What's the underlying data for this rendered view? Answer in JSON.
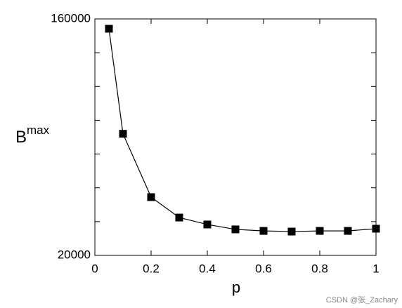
{
  "chart_data": {
    "type": "line",
    "xlabel": "p",
    "ylabel": {
      "base": "B",
      "sup": "max"
    },
    "x": [
      0.05,
      0.1,
      0.2,
      0.3,
      0.4,
      0.5,
      0.6,
      0.7,
      0.8,
      0.9,
      1.0
    ],
    "series": [
      {
        "color": "#000000",
        "values": [
          154200,
          92000,
          54500,
          42400,
          38300,
          35400,
          34500,
          34100,
          34500,
          34500,
          35800
        ]
      }
    ],
    "xlim": [
      0,
      1
    ],
    "xticks": [
      0,
      0.2,
      0.4,
      0.6,
      0.8,
      1
    ],
    "ylim": [
      20000,
      160000
    ],
    "yticks": [
      20000,
      160000
    ],
    "yminor_ticks": [
      40000,
      60000,
      80000,
      100000,
      120000,
      140000
    ],
    "marker": "square",
    "watermark": "CSDN @张_Zachary"
  }
}
